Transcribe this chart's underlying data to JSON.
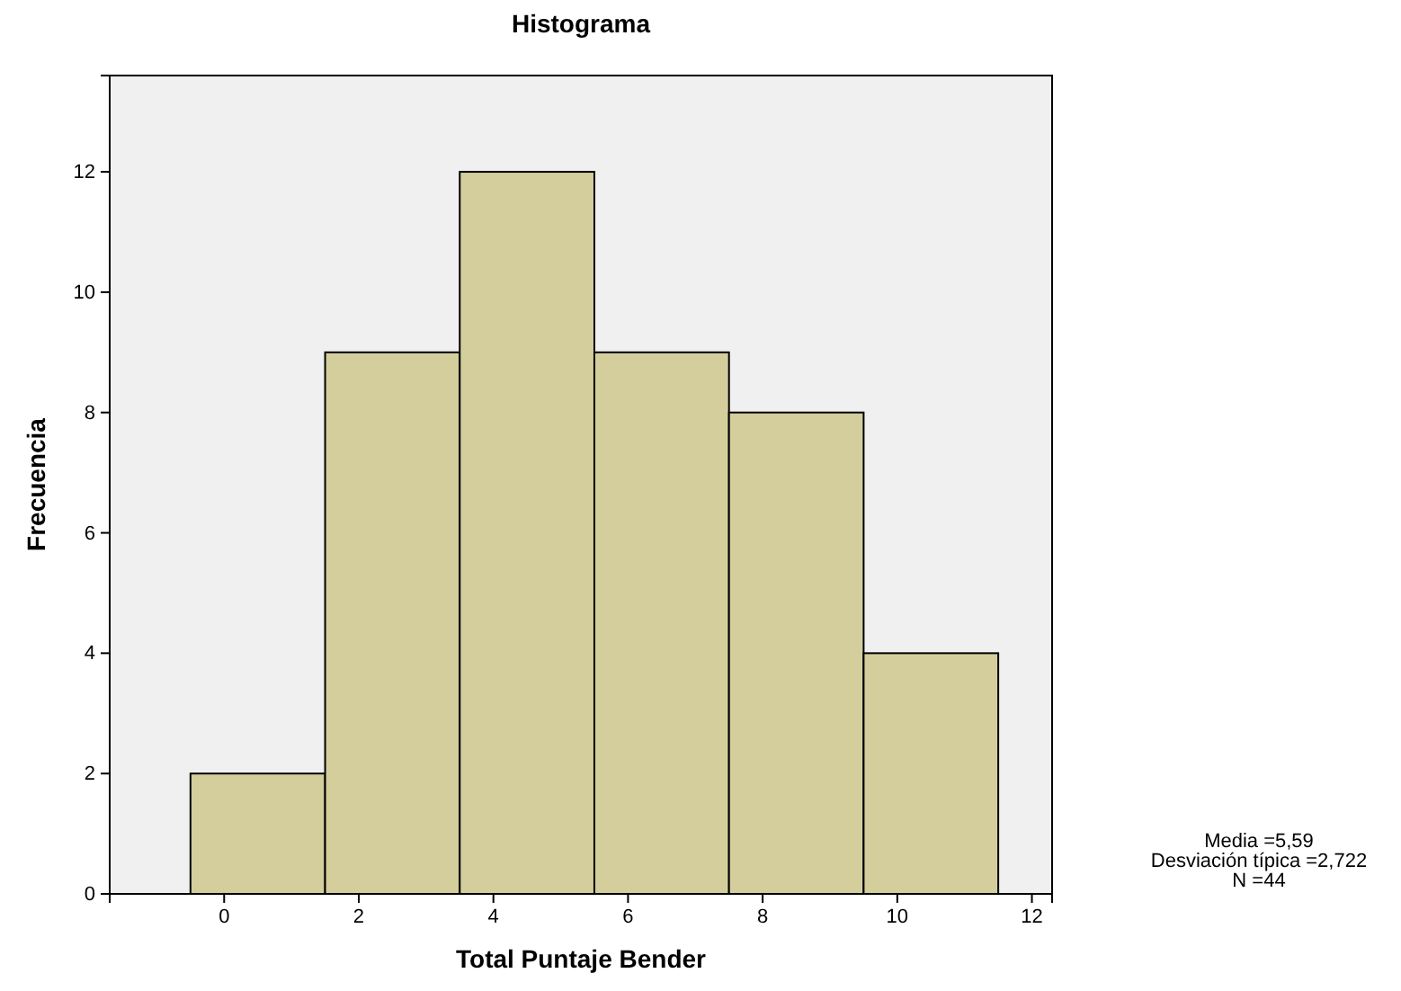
{
  "chart_data": {
    "type": "histogram",
    "title": "Histograma",
    "xlabel": "Total Puntaje Bender",
    "ylabel": "Frecuencia",
    "bins": [
      -0.5,
      1.5,
      3.5,
      5.5,
      7.5,
      9.5,
      11.5
    ],
    "values": [
      2,
      9,
      12,
      9,
      8,
      4
    ],
    "color": "#d3ce9b",
    "xlim": [
      -1.7,
      12.3
    ],
    "xticks": [
      0,
      2,
      4,
      6,
      8,
      10,
      12
    ],
    "ylim": [
      0,
      13.6
    ],
    "yticks": [
      0,
      2,
      4,
      6,
      8,
      10,
      12
    ],
    "grid": false,
    "annotations": [
      "Media =5,59",
      "Desviación típica =2,722",
      "N =44"
    ]
  }
}
